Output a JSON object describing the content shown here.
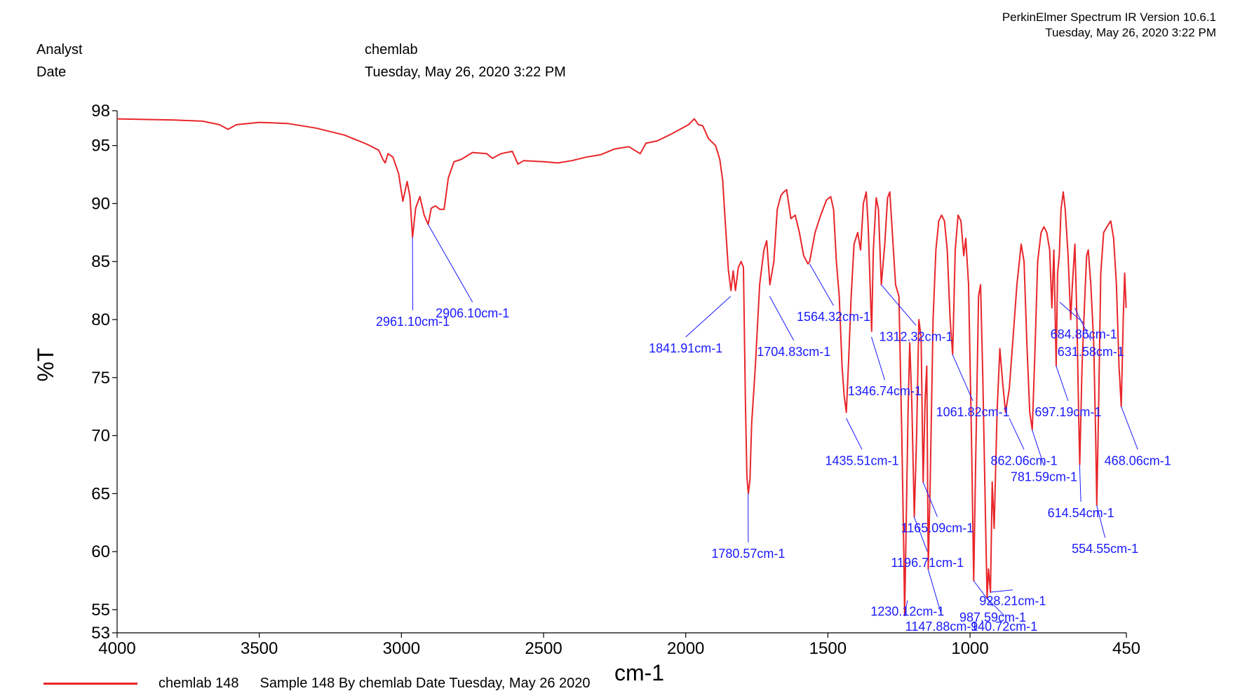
{
  "header": {
    "software": "PerkinElmer Spectrum IR Version 10.6.1",
    "datetime": "Tuesday, May 26, 2020 3:22 PM"
  },
  "meta": {
    "analyst_label": "Analyst",
    "analyst_value": "chemlab",
    "date_label": "Date",
    "date_value": "Tuesday, May 26, 2020 3:22 PM"
  },
  "legend": {
    "name": "chemlab 148",
    "description": "Sample 148 By chemlab Date Tuesday, May 26 2020"
  },
  "colors": {
    "spectrum": "#e8262a",
    "annotation": "#1a1aff",
    "axis": "#000000"
  },
  "chart_data": {
    "type": "line",
    "xlabel": "cm-1",
    "ylabel": "%T",
    "xlim": [
      4000,
      450
    ],
    "ylim": [
      53,
      98
    ],
    "x_reversed": true,
    "grid": false,
    "xticks": [
      "4000",
      "3500",
      "3000",
      "2500",
      "2000",
      "1500",
      "1000",
      "450"
    ],
    "yticks": [
      "98",
      "95",
      "90",
      "85",
      "80",
      "75",
      "70",
      "65",
      "60",
      "55",
      "53"
    ],
    "series": [
      {
        "name": "chemlab 148",
        "points": [
          [
            4000,
            97.3
          ],
          [
            3800,
            97.2
          ],
          [
            3700,
            97.1
          ],
          [
            3640,
            96.8
          ],
          [
            3610,
            96.4
          ],
          [
            3580,
            96.8
          ],
          [
            3500,
            97.0
          ],
          [
            3400,
            96.9
          ],
          [
            3300,
            96.5
          ],
          [
            3200,
            95.9
          ],
          [
            3120,
            95.1
          ],
          [
            3080,
            94.6
          ],
          [
            3065,
            93.8
          ],
          [
            3057,
            93.5
          ],
          [
            3047,
            94.3
          ],
          [
            3030,
            94.0
          ],
          [
            3010,
            92.6
          ],
          [
            2995,
            90.2
          ],
          [
            2980,
            91.9
          ],
          [
            2970,
            90.6
          ],
          [
            2961,
            87.1
          ],
          [
            2950,
            89.6
          ],
          [
            2935,
            90.6
          ],
          [
            2920,
            89.0
          ],
          [
            2906,
            88.2
          ],
          [
            2895,
            89.6
          ],
          [
            2880,
            89.8
          ],
          [
            2865,
            89.5
          ],
          [
            2850,
            89.5
          ],
          [
            2835,
            92.2
          ],
          [
            2815,
            93.6
          ],
          [
            2790,
            93.8
          ],
          [
            2750,
            94.4
          ],
          [
            2700,
            94.3
          ],
          [
            2680,
            93.9
          ],
          [
            2650,
            94.3
          ],
          [
            2610,
            94.5
          ],
          [
            2590,
            93.4
          ],
          [
            2570,
            93.7
          ],
          [
            2500,
            93.6
          ],
          [
            2450,
            93.5
          ],
          [
            2400,
            93.7
          ],
          [
            2350,
            94.0
          ],
          [
            2300,
            94.2
          ],
          [
            2250,
            94.7
          ],
          [
            2200,
            94.9
          ],
          [
            2160,
            94.3
          ],
          [
            2140,
            95.2
          ],
          [
            2100,
            95.4
          ],
          [
            2050,
            96.0
          ],
          [
            2020,
            96.4
          ],
          [
            1990,
            96.8
          ],
          [
            1970,
            97.3
          ],
          [
            1955,
            96.8
          ],
          [
            1940,
            96.7
          ],
          [
            1920,
            95.6
          ],
          [
            1895,
            95.0
          ],
          [
            1880,
            93.8
          ],
          [
            1870,
            92.0
          ],
          [
            1860,
            88.0
          ],
          [
            1850,
            84.3
          ],
          [
            1841,
            82.5
          ],
          [
            1833,
            84.2
          ],
          [
            1825,
            82.5
          ],
          [
            1815,
            84.5
          ],
          [
            1805,
            85.0
          ],
          [
            1797,
            84.5
          ],
          [
            1790,
            73.0
          ],
          [
            1785,
            66.5
          ],
          [
            1780,
            65.0
          ],
          [
            1774,
            66.2
          ],
          [
            1768,
            71.0
          ],
          [
            1755,
            76.0
          ],
          [
            1740,
            83.0
          ],
          [
            1725,
            86.0
          ],
          [
            1715,
            86.8
          ],
          [
            1704,
            83.0
          ],
          [
            1690,
            85.0
          ],
          [
            1678,
            89.5
          ],
          [
            1665,
            90.7
          ],
          [
            1655,
            91.0
          ],
          [
            1645,
            91.2
          ],
          [
            1630,
            88.7
          ],
          [
            1615,
            89.0
          ],
          [
            1600,
            87.5
          ],
          [
            1585,
            85.5
          ],
          [
            1570,
            84.8
          ],
          [
            1564,
            85.0
          ],
          [
            1545,
            87.5
          ],
          [
            1525,
            89.0
          ],
          [
            1505,
            90.3
          ],
          [
            1490,
            90.6
          ],
          [
            1480,
            89.5
          ],
          [
            1470,
            85.0
          ],
          [
            1460,
            82.0
          ],
          [
            1450,
            76.0
          ],
          [
            1443,
            73.5
          ],
          [
            1435,
            72.0
          ],
          [
            1427,
            76.5
          ],
          [
            1418,
            82.0
          ],
          [
            1408,
            86.5
          ],
          [
            1395,
            87.5
          ],
          [
            1385,
            86.0
          ],
          [
            1375,
            90.0
          ],
          [
            1365,
            91.0
          ],
          [
            1358,
            88.0
          ],
          [
            1346,
            79.0
          ],
          [
            1340,
            86.0
          ],
          [
            1330,
            90.5
          ],
          [
            1322,
            89.5
          ],
          [
            1312,
            83.0
          ],
          [
            1300,
            86.5
          ],
          [
            1290,
            90.5
          ],
          [
            1282,
            91.0
          ],
          [
            1272,
            87.0
          ],
          [
            1262,
            83.0
          ],
          [
            1250,
            82.0
          ],
          [
            1240,
            70.0
          ],
          [
            1233,
            60.0
          ],
          [
            1230,
            54.5
          ],
          [
            1226,
            60.0
          ],
          [
            1218,
            72.0
          ],
          [
            1212,
            78.0
          ],
          [
            1205,
            73.0
          ],
          [
            1196,
            63.0
          ],
          [
            1188,
            70.0
          ],
          [
            1180,
            80.0
          ],
          [
            1172,
            78.5
          ],
          [
            1165,
            66.0
          ],
          [
            1158,
            73.0
          ],
          [
            1152,
            76.0
          ],
          [
            1147,
            58.5
          ],
          [
            1140,
            66.0
          ],
          [
            1130,
            80.0
          ],
          [
            1120,
            86.0
          ],
          [
            1110,
            88.5
          ],
          [
            1100,
            89.0
          ],
          [
            1090,
            88.5
          ],
          [
            1080,
            86.0
          ],
          [
            1070,
            80.0
          ],
          [
            1061,
            77.0
          ],
          [
            1052,
            86.0
          ],
          [
            1042,
            89.0
          ],
          [
            1032,
            88.5
          ],
          [
            1022,
            85.5
          ],
          [
            1015,
            87.0
          ],
          [
            1005,
            83.0
          ],
          [
            995,
            70.0
          ],
          [
            987,
            57.5
          ],
          [
            980,
            68.0
          ],
          [
            970,
            82.0
          ],
          [
            963,
            83.0
          ],
          [
            955,
            75.0
          ],
          [
            945,
            62.0
          ],
          [
            940,
            56.0
          ],
          [
            935,
            58.5
          ],
          [
            928,
            56.5
          ],
          [
            922,
            66.0
          ],
          [
            915,
            62.0
          ],
          [
            905,
            72.0
          ],
          [
            895,
            77.5
          ],
          [
            885,
            74.5
          ],
          [
            875,
            72.0
          ],
          [
            862,
            74.0
          ],
          [
            850,
            78.0
          ],
          [
            835,
            83.0
          ],
          [
            820,
            86.5
          ],
          [
            810,
            85.0
          ],
          [
            800,
            78.0
          ],
          [
            790,
            72.0
          ],
          [
            781,
            70.5
          ],
          [
            772,
            77.0
          ],
          [
            762,
            85.0
          ],
          [
            750,
            87.5
          ],
          [
            740,
            88.0
          ],
          [
            730,
            87.5
          ],
          [
            720,
            86.0
          ],
          [
            712,
            81.0
          ],
          [
            705,
            86.0
          ],
          [
            697,
            76.0
          ],
          [
            692,
            84.0
          ],
          [
            686,
            85.5
          ],
          [
            680,
            89.5
          ],
          [
            672,
            91.0
          ],
          [
            665,
            89.5
          ],
          [
            655,
            85.5
          ],
          [
            646,
            80.0
          ],
          [
            640,
            83.0
          ],
          [
            631,
            86.5
          ],
          [
            624,
            80.0
          ],
          [
            618,
            72.0
          ],
          [
            614,
            67.5
          ],
          [
            606,
            76.0
          ],
          [
            596,
            82.0
          ],
          [
            590,
            85.5
          ],
          [
            584,
            86.0
          ],
          [
            575,
            83.0
          ],
          [
            565,
            78.0
          ],
          [
            558,
            70.0
          ],
          [
            554,
            64.0
          ],
          [
            548,
            72.0
          ],
          [
            540,
            84.0
          ],
          [
            530,
            87.5
          ],
          [
            518,
            88.0
          ],
          [
            505,
            88.5
          ],
          [
            495,
            87.0
          ],
          [
            485,
            83.0
          ],
          [
            476,
            76.0
          ],
          [
            468,
            72.5
          ],
          [
            461,
            80.0
          ],
          [
            456,
            84.0
          ],
          [
            451,
            81.0
          ]
        ]
      }
    ],
    "annotations": [
      {
        "label": "2961.10cm-1",
        "peak_x": 2961.1,
        "peak_y": 87.1,
        "text_x": 2960,
        "text_y": 80.8
      },
      {
        "label": "2906.10cm-1",
        "peak_x": 2906.1,
        "peak_y": 88.2,
        "text_x": 2750,
        "text_y": 81.5
      },
      {
        "label": "1841.91cm-1",
        "peak_x": 1841.91,
        "peak_y": 82.0,
        "text_x": 2000,
        "text_y": 78.5
      },
      {
        "label": "1780.57cm-1",
        "peak_x": 1780.57,
        "peak_y": 65.0,
        "text_x": 1780,
        "text_y": 60.8
      },
      {
        "label": "1704.83cm-1",
        "peak_x": 1704.83,
        "peak_y": 82.0,
        "text_x": 1620,
        "text_y": 78.2
      },
      {
        "label": "1564.32cm-1",
        "peak_x": 1564.32,
        "peak_y": 84.8,
        "text_x": 1480,
        "text_y": 81.2
      },
      {
        "label": "1435.51cm-1",
        "peak_x": 1435.51,
        "peak_y": 71.5,
        "text_x": 1380,
        "text_y": 68.8
      },
      {
        "label": "1346.74cm-1",
        "peak_x": 1346.74,
        "peak_y": 78.5,
        "text_x": 1300,
        "text_y": 74.8
      },
      {
        "label": "1312.32cm-1",
        "peak_x": 1312.32,
        "peak_y": 83.0,
        "text_x": 1190,
        "text_y": 79.5
      },
      {
        "label": "1230.12cm-1",
        "peak_x": 1230.12,
        "peak_y": 54.5,
        "text_x": 1220,
        "text_y": 55.8
      },
      {
        "label": "1196.71cm-1",
        "peak_x": 1196.71,
        "peak_y": 63.0,
        "text_x": 1150,
        "text_y": 60.0
      },
      {
        "label": "1165.09cm-1",
        "peak_x": 1165.09,
        "peak_y": 66.0,
        "text_x": 1115,
        "text_y": 63.0
      },
      {
        "label": "1147.88cm-1",
        "peak_x": 1147.88,
        "peak_y": 58.5,
        "text_x": 1100,
        "text_y": 54.5
      },
      {
        "label": "1061.82cm-1",
        "peak_x": 1061.82,
        "peak_y": 77.0,
        "text_x": 990,
        "text_y": 73.0
      },
      {
        "label": "987.59cm-1",
        "peak_x": 987.59,
        "peak_y": 57.5,
        "text_x": 920,
        "text_y": 55.3
      },
      {
        "label": "940.72cm-1",
        "peak_x": 940.72,
        "peak_y": 56.0,
        "text_x": 880,
        "text_y": 54.5
      },
      {
        "label": "928.21cm-1",
        "peak_x": 928.21,
        "peak_y": 56.5,
        "text_x": 850,
        "text_y": 56.7
      },
      {
        "label": "862.06cm-1",
        "peak_x": 862.06,
        "peak_y": 71.5,
        "text_x": 810,
        "text_y": 68.8
      },
      {
        "label": "781.59cm-1",
        "peak_x": 781.59,
        "peak_y": 70.5,
        "text_x": 740,
        "text_y": 67.4
      },
      {
        "label": "697.19cm-1",
        "peak_x": 697.19,
        "peak_y": 76.0,
        "text_x": 655,
        "text_y": 73.0
      },
      {
        "label": "684.86cm-1",
        "peak_x": 684.86,
        "peak_y": 81.5,
        "text_x": 600,
        "text_y": 79.7
      },
      {
        "label": "631.58cm-1",
        "peak_x": 631.58,
        "peak_y": 81.0,
        "text_x": 575,
        "text_y": 78.2
      },
      {
        "label": "614.54cm-1",
        "peak_x": 614.54,
        "peak_y": 67.5,
        "text_x": 610,
        "text_y": 64.3
      },
      {
        "label": "554.55cm-1",
        "peak_x": 554.55,
        "peak_y": 64.0,
        "text_x": 525,
        "text_y": 61.2
      },
      {
        "label": "468.06cm-1",
        "peak_x": 468.06,
        "peak_y": 72.5,
        "text_x": 410,
        "text_y": 68.8
      }
    ]
  }
}
